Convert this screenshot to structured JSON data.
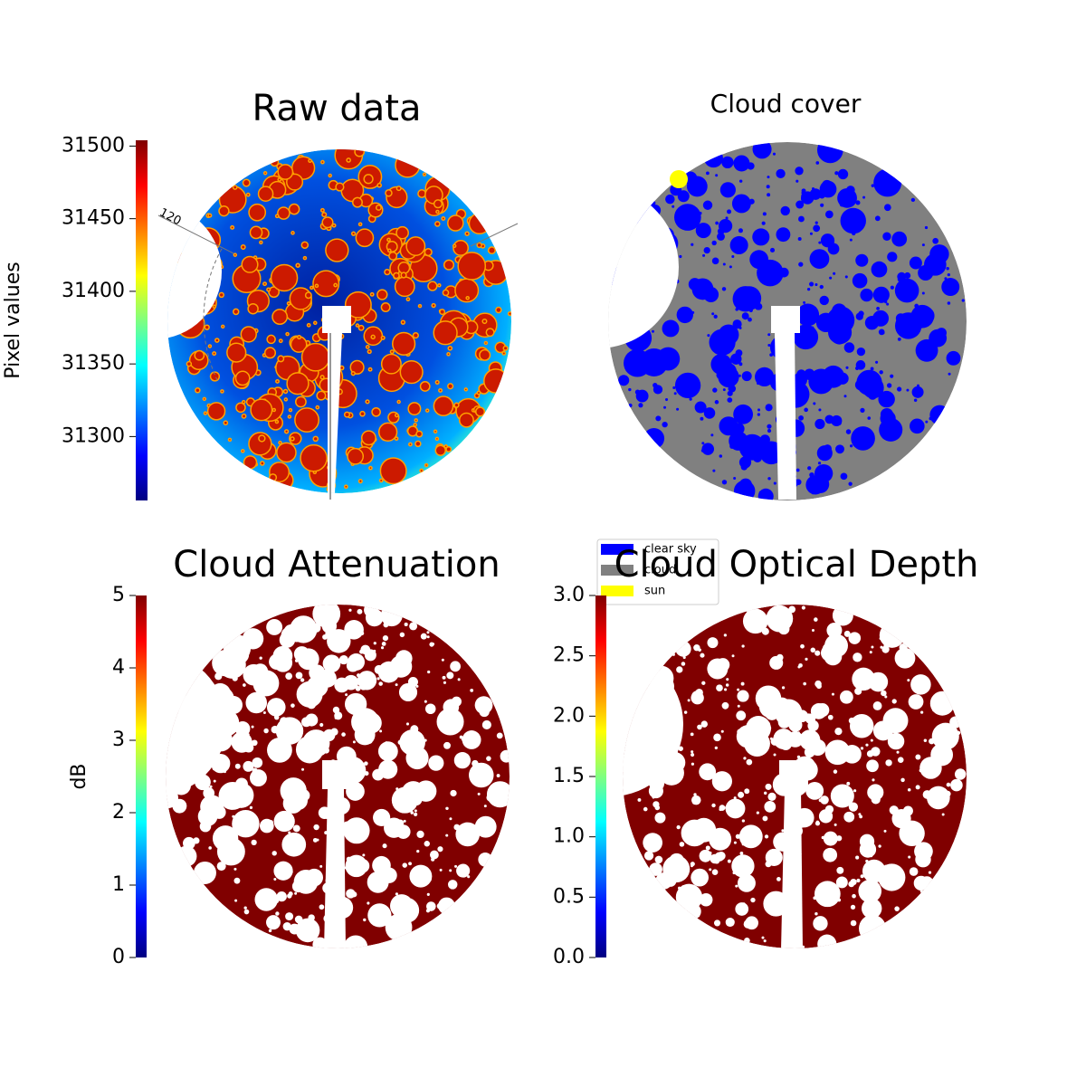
{
  "chart_data": [
    {
      "type": "image",
      "title": "Raw data",
      "ylabel": "Pixel values",
      "ylim": [
        31256,
        31504
      ],
      "yticks": [
        31300,
        31350,
        31400,
        31450,
        31500
      ],
      "annotations": [
        "120"
      ]
    },
    {
      "type": "image",
      "title": "Cloud cover",
      "legend": [
        {
          "name": "clear sky",
          "color": "#0000ff"
        },
        {
          "name": "cloud",
          "color": "#808080"
        },
        {
          "name": "sun",
          "color": "#ffff00"
        }
      ]
    },
    {
      "type": "image",
      "title": "Cloud Attenuation",
      "ylabel": "dB",
      "ylim": [
        0,
        5
      ],
      "yticks": [
        0,
        1,
        2,
        3,
        4,
        5
      ]
    },
    {
      "type": "image",
      "title": "Cloud Optical Depth",
      "ylim": [
        0,
        3
      ],
      "yticks": [
        {
          "value": 0,
          "label": "0.0"
        },
        0.5,
        {
          "value": 1,
          "label": "1.0"
        },
        1.5,
        {
          "value": 2,
          "label": "2.0"
        },
        2.5,
        {
          "value": 3,
          "label": "3.0"
        }
      ]
    }
  ]
}
